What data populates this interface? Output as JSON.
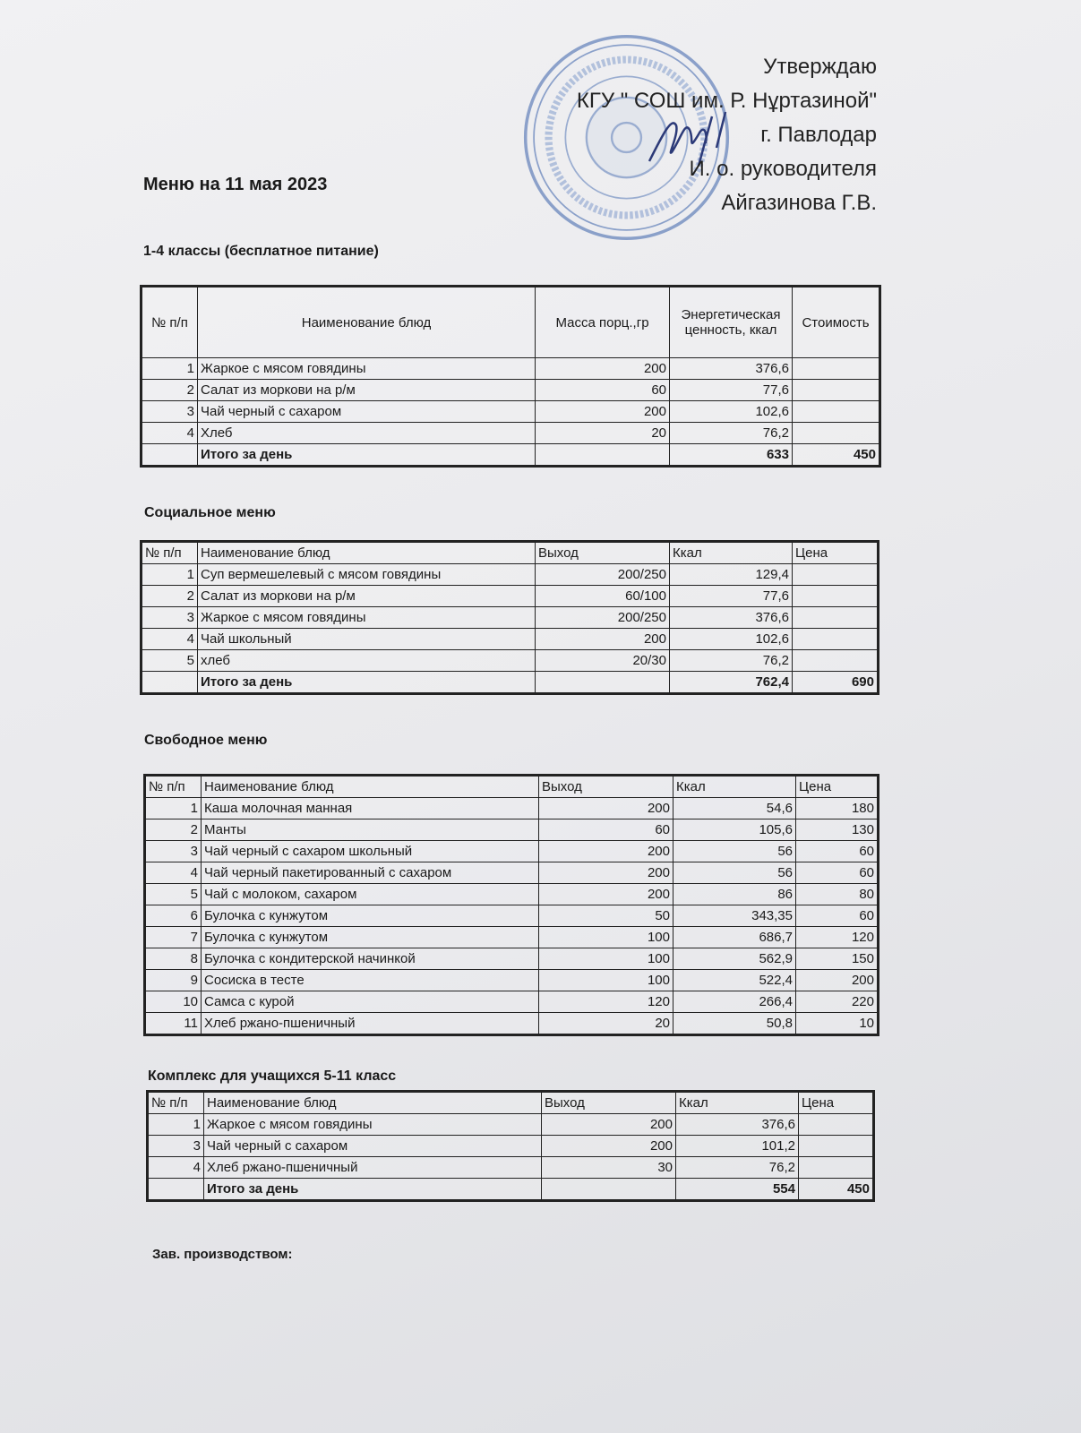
{
  "approval": {
    "lines": [
      "Утверждаю",
      "КГУ \" СОШ им. Р. Нұртазиной\"",
      "г. Павлодар",
      "И. о. руководителя",
      "Айгазинова Г.В."
    ]
  },
  "stamp": {
    "text": "ПАВЛОДАР ОБЛЫСЫ БІЛІМ БЕРУ БАСҚАРМАСЫ, ПАВЛОДАР ҚАЛАСЫ БІЛІМ БЕРУ БӨЛІМІНІҢ Р. НҰРТАЗИНА АТЫНДАҒЫ ЖАЛПЫ ОРТА БІЛІМ БЕРЕТІН МЕКТЕБІ КОММУНАЛДЫҚ МЕМЛЕКЕТТІК МЕКЕМЕСІ 960640001933",
    "color": "#5f7fb8"
  },
  "title": "Меню на 11 мая 2023",
  "sections": [
    {
      "heading": "1-4 классы (бесплатное питание)",
      "columns": [
        "№ п/п",
        "Наименование блюд",
        "Масса порц.,гр",
        "Энергетическая ценность, ккал",
        "Стоимость"
      ],
      "rows": [
        [
          "1",
          "Жаркое с мясом говядины",
          "200",
          "376,6",
          ""
        ],
        [
          "2",
          "Салат из моркови на р/м",
          "60",
          "77,6",
          ""
        ],
        [
          "3",
          "Чай черный с сахаром",
          "200",
          "102,6",
          ""
        ],
        [
          "4",
          "Хлеб",
          "20",
          "76,2",
          ""
        ]
      ],
      "total": [
        "",
        "Итого за день",
        "",
        "633",
        "450"
      ]
    },
    {
      "heading": "Социальное меню",
      "columns": [
        "№ п/п",
        "Наименование блюд",
        "Выход",
        "Ккал",
        "Цена"
      ],
      "rows": [
        [
          "1",
          "Суп вермешелевый с мясом говядины",
          "200/250",
          "129,4",
          ""
        ],
        [
          "2",
          "Салат из моркови на р/м",
          "60/100",
          "77,6",
          ""
        ],
        [
          "3",
          "Жаркое с мясом говядины",
          "200/250",
          "376,6",
          ""
        ],
        [
          "4",
          "Чай школьный",
          "200",
          "102,6",
          ""
        ],
        [
          "5",
          "хлеб",
          "20/30",
          "76,2",
          ""
        ]
      ],
      "total": [
        "",
        "Итого за день",
        "",
        "762,4",
        "690"
      ]
    },
    {
      "heading": "Свободное меню",
      "columns": [
        "№ п/п",
        "Наименование блюд",
        "Выход",
        "Ккал",
        "Цена"
      ],
      "rows": [
        [
          "1",
          "Каша молочная манная",
          "200",
          "54,6",
          "180"
        ],
        [
          "2",
          "Манты",
          "60",
          "105,6",
          "130"
        ],
        [
          "3",
          "Чай черный с сахаром школьный",
          "200",
          "56",
          "60"
        ],
        [
          "4",
          "Чай черный пакетированный с сахаром",
          "200",
          "56",
          "60"
        ],
        [
          "5",
          "Чай с молоком, сахаром",
          "200",
          "86",
          "80"
        ],
        [
          "6",
          "Булочка с кунжутом",
          "50",
          "343,35",
          "60"
        ],
        [
          "7",
          "Булочка с кунжутом",
          "100",
          "686,7",
          "120"
        ],
        [
          "8",
          "Булочка с кондитерской начинкой",
          "100",
          "562,9",
          "150"
        ],
        [
          "9",
          "Сосиска в тесте",
          "100",
          "522,4",
          "200"
        ],
        [
          "10",
          "Самса с курой",
          "120",
          "266,4",
          "220"
        ],
        [
          "11",
          "Хлеб ржано-пшеничный",
          "20",
          "50,8",
          "10"
        ]
      ],
      "total": null
    },
    {
      "heading": "Комплекс для учащихся 5-11 класс",
      "columns": [
        "№ п/п",
        "Наименование блюд",
        "Выход",
        "Ккал",
        "Цена"
      ],
      "rows": [
        [
          "1",
          "Жаркое с мясом говядины",
          "200",
          "376,6",
          ""
        ],
        [
          "3",
          "Чай черный с сахаром",
          "200",
          "101,2",
          ""
        ],
        [
          "4",
          "Хлеб ржано-пшеничный",
          "30",
          "76,2",
          ""
        ]
      ],
      "total": [
        "",
        "Итого за день",
        "",
        "554",
        "450"
      ]
    }
  ],
  "footer": "Зав. производством:"
}
